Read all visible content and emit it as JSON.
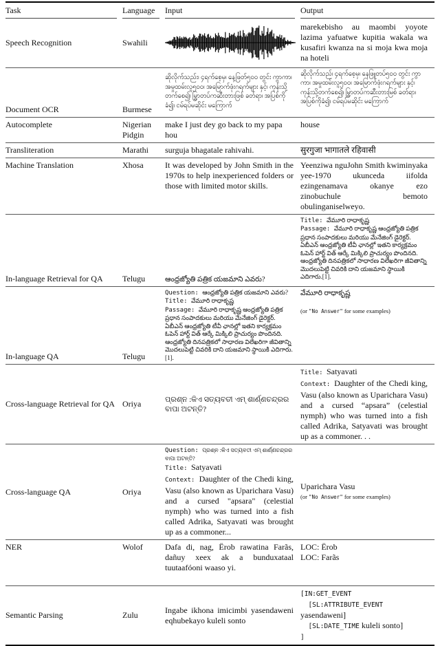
{
  "header": {
    "task": "Task",
    "language": "Language",
    "input": "Input",
    "output": "Output"
  },
  "rows": [
    {
      "task": "Speech Recognition",
      "language": "Swahili",
      "input_icon": "audio-waveform",
      "output_lines": [
        {
          "text": "marekebisho au maombi yoyote lazima yafuatwe kupitia wakala wa kusafiri kwanza na si moja kwa moja na hoteli",
          "cls": "just"
        }
      ]
    },
    {
      "task": "Document OCR",
      "language": "Burmese",
      "input_lines": [
        {
          "text": "ဆိုလိုက်သည်း၊ ၄ရက်စေ့မှ၊ နေ့ဖြတ်၅၀၀ တွင်း ကွာကာ၊ အမှုထမ်းလူ၅၀၀၊ အမြောက်ဖုံးဂရက်များ နှင့်၊ ကုန်းသို့တက်စေ၍၊ မြွှာတပ်ကဆီးတားဖြစ် ခတ်ရာ၊ အပြစ်ကိုခံ၍၊ ငမ်ရပ်မဆိုင်း မကြောက်",
          "cls": "burmese"
        }
      ],
      "output_lines": [
        {
          "text": "ဆိုလိုက်သည်၊ ၄ရက်စေ့မှ၊ နေဖြူတပ်၅၀၀ တွင်း ကွာကာ၊ အမှုထမ်းလူ၅၀၀၊ အမြောက်ဖုံးဂရက်များ နှင့်၊ ကုန်းသို့တက်စေ၍၊ မြွှာတပ်ကဆီးတားမြစ် ခတ်ရာ၊ အပြစ်ကိုခံ၍၊ ငမ်ရပ်မဆိုင်း မကြောက်",
          "cls": "burmese"
        }
      ]
    },
    {
      "task": "Autocomplete",
      "language": "Nigerian Pidgin",
      "input_lines": [
        {
          "text": "make I just dey go back to my papa hou"
        }
      ],
      "output_lines": [
        {
          "text": "house"
        }
      ]
    },
    {
      "task": "Transliteration",
      "language": "Marathi",
      "input_lines": [
        {
          "text": "surguja bhagatale rahivahi."
        }
      ],
      "output_lines": [
        {
          "text": "सुरगुजा भागातले रहिवासी"
        }
      ]
    },
    {
      "task": "Machine Translation",
      "language": "Xhosa",
      "input_lines": [
        {
          "text": "It was developed by John Smith in the 1970s to help inexperienced folders or those with limited motor skills.",
          "cls": "just"
        }
      ],
      "output_lines": [
        {
          "text": "Yeenziwa nguJohn Smith kwiminyaka yee-1970 ukunceda iifolda ezingenamava okanye ezo zinobuchule bemoto obulinganiselweyo.",
          "cls": "just"
        }
      ]
    },
    {
      "task": "In-language Retrieval for QA",
      "language": "Telugu",
      "input_lines": [
        {
          "text": "ఆంధ్రజ్యోతి పత్రిక యజమాని ఎవరు?",
          "cls": "telugu-q"
        }
      ],
      "output_lines": [
        {
          "label": "Title: ",
          "text": "వేమూరి రాధాకృష్ణ",
          "cls": "telugu"
        },
        {
          "label": "Passage: ",
          "text": "వేమూరి రాధాకృష్ణ ఆంధ్రజ్యోతి పత్రిక ప్రధాన సంపాదకులు మరియు మేనేజింగ్ డైరెక్టర్. ఏబీఎన్ ఆంధ్రజ్యోతి టీవీ ఛానల్లో ఇతని కార్యక్రమం ఓపెన్ హార్ట్ విత్ ఆర్కే మిక్కిలి ప్రాచుర్యం పొందినది. ఆంధ్రజ్యోతి దినపత్రికలో సాధారణ విలేఖరిగా జీవితాన్ని మొదలుపెట్టి చివరికి దాని యజమాని స్థాయికి ఎదిగారు.[1].",
          "cls": "telugu"
        }
      ]
    },
    {
      "task": "In-language QA",
      "language": "Telugu",
      "input_lines": [
        {
          "label": "Question: ",
          "text": "ఆంధ్రజ్యోతి పత్రిక యజమాని ఎవరు?",
          "cls": "telugu"
        },
        {
          "label": "Title: ",
          "text": "వేమూరి రాధాకృష్ణ",
          "cls": "telugu"
        },
        {
          "label": "Passage: ",
          "text": "వేమూరి రాధాకృష్ణ ఆంధ్రజ్యోతి పత్రిక ప్రధాన సంపాదకులు మరియు మేనేజింగ్ డైరెక్టర్. ఏబీఎన్ ఆంధ్రజ్యోతి టీవీ ఛానల్లో ఇతని కార్యక్రమం ఓపెన్ హార్ట్ విత్ ఆర్కే మిక్కిలి ప్రాచుర్యం పొందినది. ఆంధ్రజ్యోతి దినపత్రికలో సాధారణ విలేఖరిగా జీవితాన్ని మొదలుపెట్టి చివరికి దాని యజమాని స్థాయికి ఎదిగారు.[1].",
          "cls": "telugu"
        }
      ],
      "output_lines": [
        {
          "text": "వేమూరి రాధాకృష్ణ",
          "cls": "telugu-a"
        },
        {
          "pre": "(or ",
          "mono": "\"No Answer\"",
          "post": " for some examples)",
          "cls": "small gap-top"
        }
      ]
    },
    {
      "task": "Cross-language Retrieval for QA",
      "language": "Oriya",
      "input_lines": [
        {
          "text": "ପ୍ରଶ୍ନ :କିଏ ସତ୍ୟବତୀ ଏମ୍ ଶାର୍ଣ୍ଣଚନ୍ଦ୍ରର ବାପା ଅଟନ୍ତି?",
          "cls": "oriya"
        }
      ],
      "output_lines": [
        {
          "label": "Title: ",
          "text": "Satyavati"
        },
        {
          "label": "Context: ",
          "text": "Daughter of the Chedi king, Vasu (also known as Uparichara Vasu) and a cursed “apsara” (celestial nymph) who was turned into a fish called Adrika, Satyavati was brought up as a commoner. . .",
          "cls": "just"
        }
      ]
    },
    {
      "task": "Cross-language QA",
      "language": "Oriya",
      "input_lines": [
        {
          "label": "Question: ",
          "text": "ପ୍ରଶ୍ନ :କିଏ ସତ୍ୟବତୀ ଏମ୍ ଶାର୍ଣ୍ଣଚନ୍ଦ୍ରର ବାପା ଅଟନ୍ତି?",
          "cls": "oriya-small"
        },
        {
          "label": "Title: ",
          "text": "Satyavati"
        },
        {
          "label": "Context: ",
          "text": "Daughter of the Chedi king, Vasu (also known as Uparichara Vasu) and a cursed \"apsara\" (celestial nymph) who was turned into a fish called Adrika, Satyavati was brought up as a commoner...",
          "cls": "just"
        }
      ],
      "output_lines": [
        {
          "text": "Uparichara Vasu"
        },
        {
          "pre": "(or ",
          "mono": "\"No Answer\"",
          "post": " for some examples)",
          "cls": "small"
        }
      ]
    },
    {
      "task": "NER",
      "language": "Wolof",
      "input_lines": [
        {
          "text": "Dafa di, nag, Ërob rawatina Farãs, dañuy xeex ak a bunduxataal tuutaafóoni waaso yi.",
          "cls": "just"
        }
      ],
      "output_lines": [
        {
          "text": "LOC: Ërob"
        },
        {
          "text": "LOC: Farãs"
        }
      ]
    },
    {
      "task": "Semantic Parsing",
      "language": "Zulu",
      "input_lines": [
        {
          "text": "Ingabe ikhona imicimbi yasendaweni eqhubekayo kuleli sonto",
          "cls": "just"
        }
      ],
      "output_lines": [
        {
          "mono": "[IN:GET_EVENT",
          "cls": "sp"
        },
        {
          "mono": "  [SL:ATTRIBUTE_EVENT",
          "post": " yasendaweni]",
          "cls": "sp"
        },
        {
          "mono": "  [SL:DATE_TIME",
          "post": " kuleli sonto]",
          "cls": "sp"
        },
        {
          "mono": "]",
          "cls": "sp"
        }
      ]
    }
  ]
}
